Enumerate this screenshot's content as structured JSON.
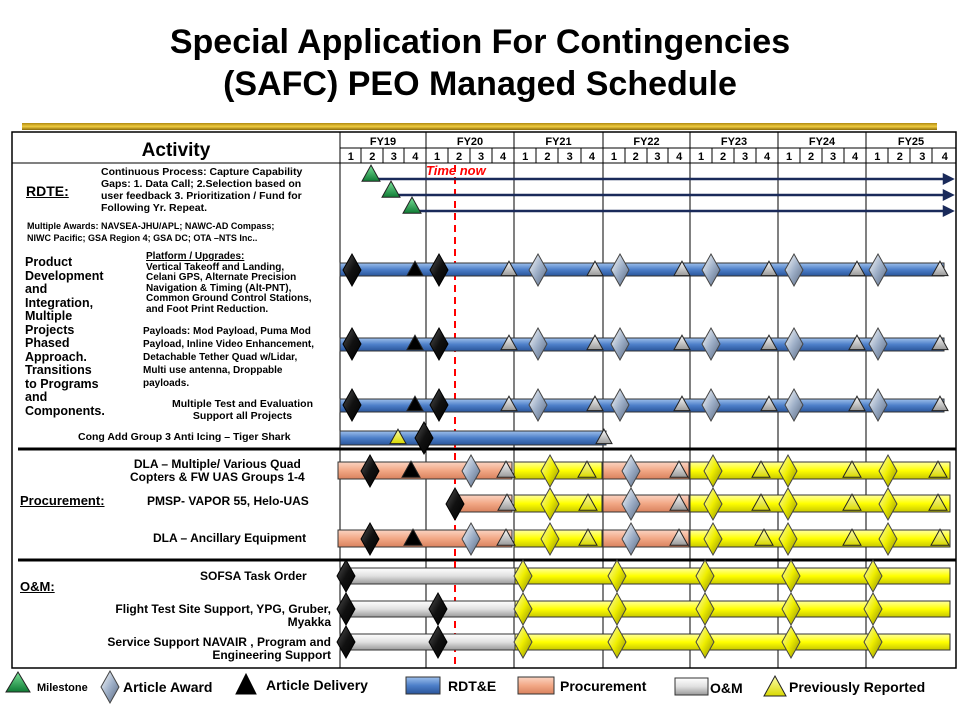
{
  "title_line1": "Special Application For Contingencies",
  "title_line2": "(SAFC) PEO Managed Schedule",
  "header": {
    "activity": "Activity",
    "fiscal_years": [
      "FY19",
      "FY20",
      "FY21",
      "FY22",
      "FY23",
      "FY24",
      "FY25"
    ],
    "quarters": [
      "1",
      "2",
      "3",
      "4"
    ],
    "time_now": "Time now"
  },
  "rdte": {
    "label": "RDTE:",
    "process_line1": "Continuous  Process: Capture Capability",
    "process_line2": "Gaps: 1. Data Call; 2.Selection based on",
    "process_line3": "user feedback 3. Prioritization / Fund for",
    "process_line4": "Following  Yr. Repeat.",
    "awards_line1": "Multiple Awards: NAVSEA-JHU/APL; NAWC-AD Compass;",
    "awards_line2": "NIWC Pacific; GSA Region 4; GSA DC; OTA –NTS Inc.."
  },
  "product_dev": {
    "label_lines": [
      "Product",
      "Development",
      "and",
      "Integration,",
      "Multiple",
      "Projects",
      "Phased",
      "Approach.",
      "Transitions",
      "to Programs",
      "and",
      "Components."
    ],
    "platform_lines": [
      "Platform / Upgrades:",
      "Vertical Takeoff and Landing,",
      "Celani GPS,  Alternate Precision",
      "Navigation & Timing (Alt-PNT),",
      "Common Ground Control Stations,",
      "and Foot Print Reduction."
    ],
    "payload_lines": [
      "Payloads: Mod Payload, Puma Mod",
      "Payload, Inline Video Enhancement,",
      "Detachable Tether Quad w/Lidar,",
      "Multi use antenna, Droppable",
      "payloads."
    ],
    "testing_lines": [
      "Multiple  Test and Evaluation",
      "Support all Projects"
    ]
  },
  "cong_add": "Cong Add Group  3 Anti Icing – Tiger Shark",
  "procurement": {
    "label": "Procurement:",
    "dla_quad_lines": [
      "DLA – Multiple/ Various  Quad",
      "Copters & FW UAS Groups 1-4"
    ],
    "pmsp": "PMSP- VAPOR 55, Helo-UAS",
    "dla_anc": "DLA – Ancillary Equipment"
  },
  "om": {
    "label": "O&M:",
    "sofsa": "SOFSA Task Order",
    "flight_lines": [
      "Flight Test Site Support, YPG, Gruber,",
      "Myakka"
    ],
    "service_lines": [
      "Service Support NAVAIR , Program and",
      "Engineering Support"
    ]
  },
  "legend": {
    "milestone": "Milestone",
    "article_award": "Article Award",
    "article_delivery": "Article Delivery",
    "rdte": "RDT&E",
    "procurement": "Procurement",
    "om": "O&M",
    "previously_reported": "Previously Reported"
  },
  "colors": {
    "rdte_bar": "#4d7fc9",
    "procurement_bar": "#f2a886",
    "om_bar": "#e0e0e0",
    "previously_reported": "#ffff00",
    "milestone": "#1a9a45",
    "time_now": "#ff0000",
    "gold_rule": "#d4a820"
  }
}
